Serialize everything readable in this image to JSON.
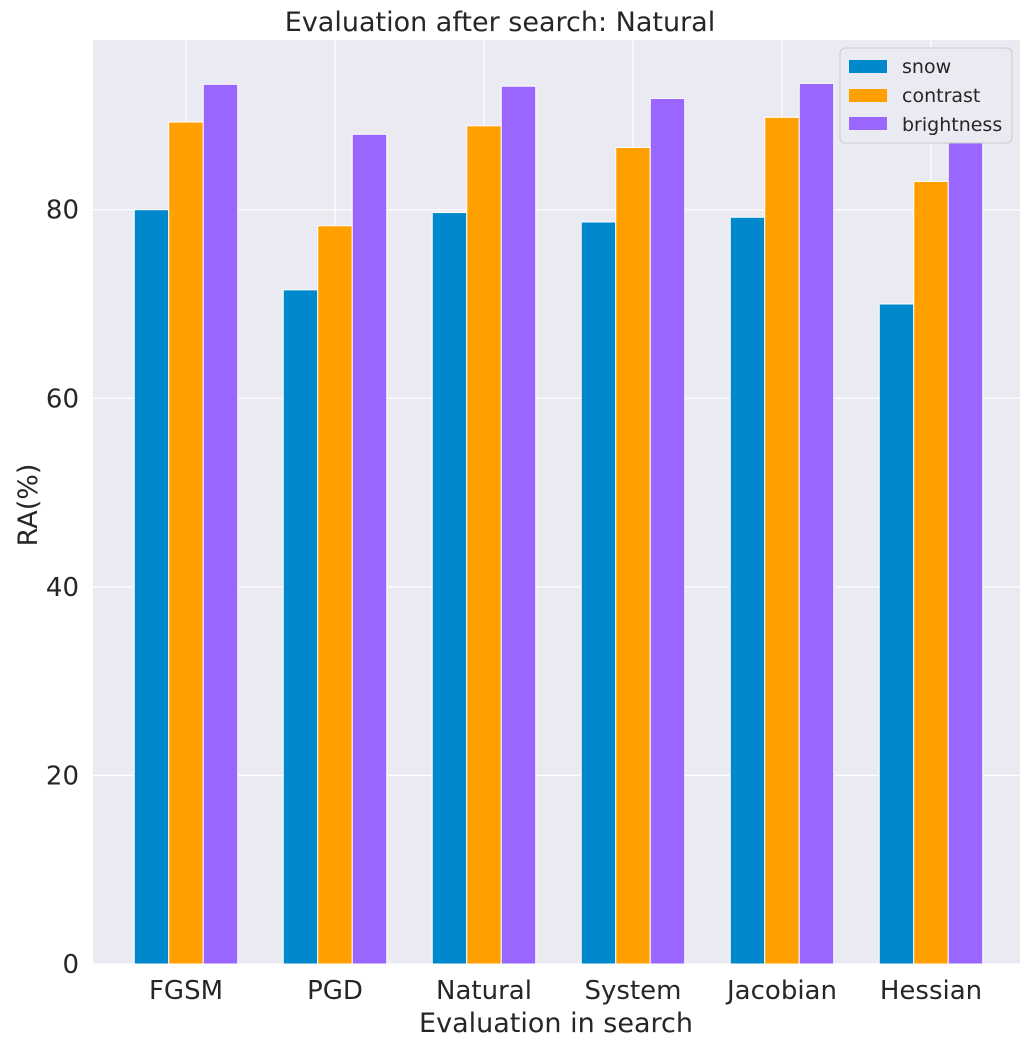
{
  "chart_data": {
    "type": "bar",
    "title": "Evaluation after search: Natural",
    "xlabel": "Evaluation in search",
    "ylabel": "RA(%)",
    "categories": [
      "FGSM",
      "PGD",
      "Natural",
      "System",
      "Jacobian",
      "Hessian"
    ],
    "series": [
      {
        "name": "snow",
        "color": "#0088cc",
        "values": [
          80.0,
          71.5,
          79.7,
          78.7,
          79.2,
          70.0
        ]
      },
      {
        "name": "contrast",
        "color": "#ffa000",
        "values": [
          89.3,
          78.3,
          88.9,
          86.6,
          89.8,
          83.0
        ]
      },
      {
        "name": "brightness",
        "color": "#9966ff",
        "values": [
          93.3,
          88.0,
          93.1,
          91.8,
          93.4,
          89.5
        ]
      }
    ],
    "ylim": [
      0,
      98
    ],
    "yticks": [
      0,
      20,
      40,
      60,
      80
    ],
    "grid": true,
    "legend_position": "top-right",
    "background": "#eaeaf2"
  }
}
